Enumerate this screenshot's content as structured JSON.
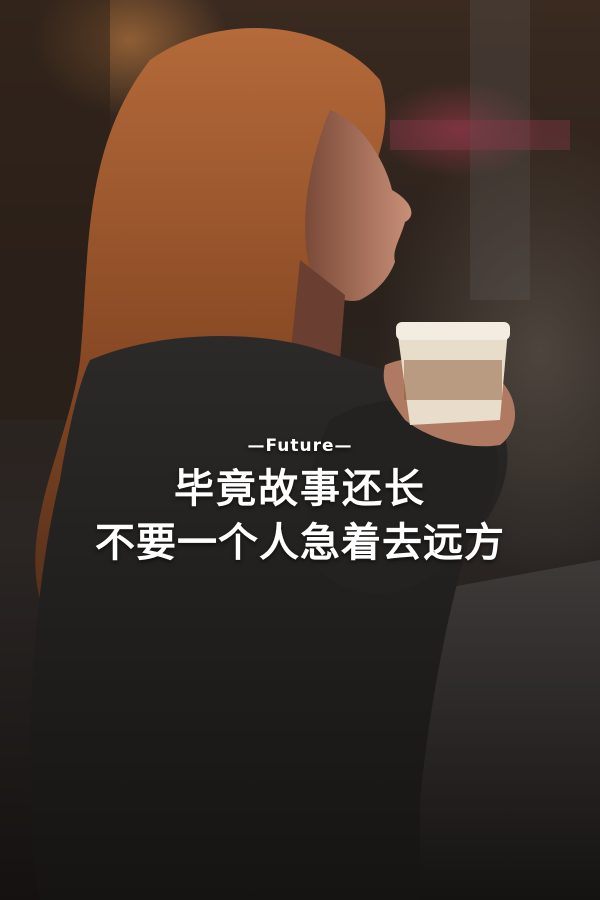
{
  "overlay": {
    "brand": "—Future—",
    "line1": "毕竟故事还长",
    "line2": "不要一个人急着去远方"
  }
}
